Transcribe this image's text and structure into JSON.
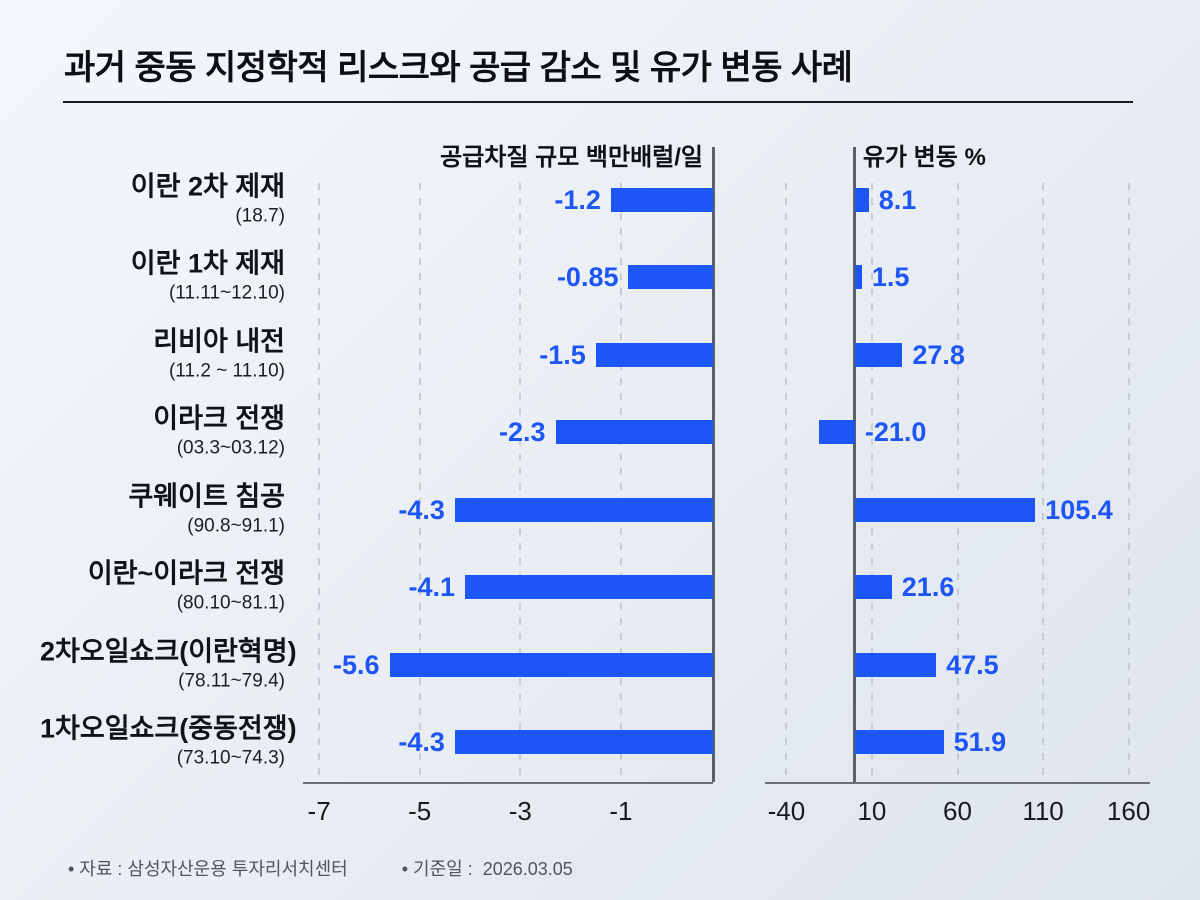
{
  "title": "과거 중동 지정학적 리스크와 공급 감소 및 유가 변동 사례",
  "footer": {
    "source": "• 자료 : 삼성자산운용 투자리서치센터",
    "basis_date": "• 기준일 :  2026.03.05"
  },
  "chart_data": {
    "type": "bar",
    "orientation": "horizontal",
    "grid": "dashed-vertical",
    "legend": "none",
    "bar_color": "#1d56f5",
    "value_label_color": "#1d56f5",
    "axis_line_color": "#5b5f66",
    "categories": [
      {
        "label": "이란 2차 제재",
        "period": "(18.7)"
      },
      {
        "label": "이란 1차 제재",
        "period": "(11.11~12.10)"
      },
      {
        "label": "리비아 내전",
        "period": "(11.2 ~ 11.10)"
      },
      {
        "label": "이라크 전쟁",
        "period": "(03.3~03.12)"
      },
      {
        "label": "쿠웨이트 침공",
        "period": "(90.8~91.1)"
      },
      {
        "label": "이란~이라크 전쟁",
        "period": "(80.10~81.1)"
      },
      {
        "label": "2차오일쇼크(이란혁명)",
        "period": "(78.11~79.4)"
      },
      {
        "label": "1차오일쇼크(중동전쟁)",
        "period": "(73.10~74.3)"
      }
    ],
    "series": [
      {
        "name": "공급차질 규모 백만배럴/일",
        "values": [
          -1.2,
          -0.85,
          -1.5,
          -2.3,
          -4.3,
          -4.1,
          -5.6,
          -4.3
        ],
        "labels": [
          "-1.2",
          "-0.85",
          "-1.5",
          "-2.3",
          "-4.3",
          "-4.1",
          "-5.6",
          "-4.3"
        ],
        "ticks": [
          -7,
          -5,
          -3,
          -1
        ],
        "xlim": [
          -7.32,
          0.83
        ],
        "bars_anchor": "right-edge"
      },
      {
        "name": "유가 변동 %",
        "values": [
          8.1,
          1.5,
          27.8,
          -21.0,
          105.4,
          21.6,
          47.5,
          51.9
        ],
        "labels": [
          "8.1",
          "1.5",
          "27.8",
          "-21.0",
          "105.4",
          "21.6",
          "47.5",
          "51.9"
        ],
        "ticks": [
          -40,
          10,
          60,
          110,
          160
        ],
        "xlim": [
          -52.5,
          172.5
        ],
        "bars_anchor": "zero"
      }
    ]
  }
}
